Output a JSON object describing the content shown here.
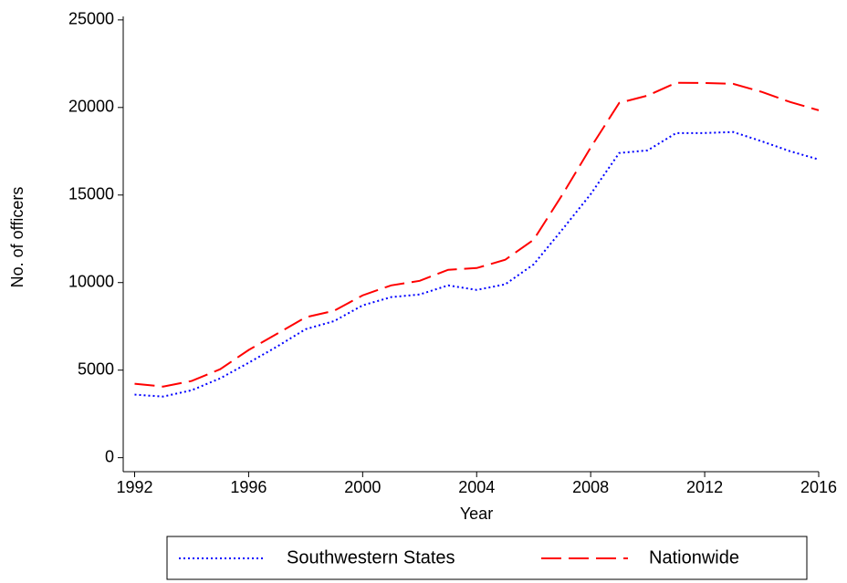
{
  "chart_data": {
    "type": "line",
    "x_label": "Year",
    "y_label": "No. of officers",
    "x": [
      1992,
      1993,
      1994,
      1995,
      1996,
      1997,
      1998,
      1999,
      2000,
      2001,
      2002,
      2003,
      2004,
      2005,
      2006,
      2007,
      2008,
      2009,
      2010,
      2011,
      2012,
      2013,
      2014,
      2015,
      2016
    ],
    "series": [
      {
        "name": "Southwestern States",
        "color": "#0000ff",
        "dash": "dotted",
        "values": [
          3600,
          3490,
          3850,
          4530,
          5420,
          6350,
          7340,
          7800,
          8700,
          9170,
          9320,
          9840,
          9580,
          9900,
          11040,
          13020,
          15050,
          17400,
          17550,
          18540,
          18540,
          18600,
          18070,
          17500,
          17030
        ]
      },
      {
        "name": "Nationwide",
        "color": "#ff0000",
        "dash": "dashed",
        "values": [
          4220,
          4060,
          4380,
          5050,
          6150,
          7080,
          8020,
          8390,
          9270,
          9840,
          10100,
          10730,
          10830,
          11300,
          12450,
          15000,
          17710,
          20260,
          20680,
          21410,
          21400,
          21350,
          20890,
          20310,
          19840
        ]
      }
    ],
    "xlim": [
      1991.6,
      2016
    ],
    "xticks": [
      1992,
      1996,
      2000,
      2004,
      2008,
      2012,
      2016
    ],
    "ylim": [
      -800,
      25200
    ],
    "yticks": [
      0,
      5000,
      10000,
      15000,
      20000,
      25000
    ],
    "legend": "bottom"
  }
}
